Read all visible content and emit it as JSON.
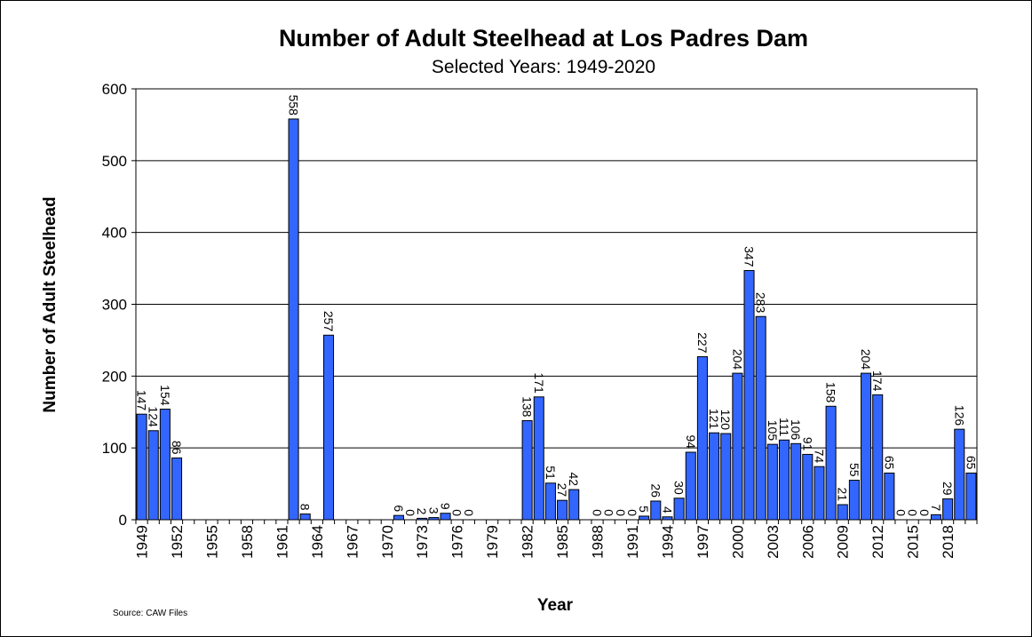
{
  "chart_data": {
    "type": "bar",
    "title": "Number of Adult Steelhead at Los Padres Dam",
    "subtitle": "Selected Years: 1949-2020",
    "x_label": "Year",
    "y_label": "Number of Adult Steelhead",
    "source": "Source:  CAW Files",
    "categories": [
      "1949",
      null,
      null,
      "1952",
      null,
      null,
      "1955",
      null,
      null,
      "1958",
      null,
      null,
      "1961",
      null,
      null,
      "1964",
      null,
      null,
      "1967",
      null,
      null,
      "1970",
      null,
      null,
      "1973",
      null,
      null,
      "1976",
      null,
      null,
      "1979",
      null,
      null,
      "1982",
      null,
      null,
      "1985",
      null,
      null,
      "1988",
      null,
      null,
      "1991",
      null,
      null,
      "1994",
      null,
      null,
      "1997",
      null,
      null,
      "2000",
      null,
      null,
      "2003",
      null,
      null,
      "2006",
      null,
      null,
      "2009",
      null,
      null,
      "2012",
      null,
      null,
      "2015",
      null,
      null,
      "2018",
      null,
      null
    ],
    "values": [
      147,
      124,
      154,
      86,
      null,
      null,
      null,
      null,
      null,
      null,
      null,
      null,
      null,
      558,
      8,
      null,
      257,
      null,
      null,
      null,
      null,
      null,
      6,
      0,
      2,
      3,
      9,
      0,
      0,
      null,
      null,
      null,
      null,
      138,
      171,
      51,
      27,
      42,
      null,
      0,
      0,
      0,
      0,
      5,
      26,
      4,
      30,
      94,
      227,
      121,
      120,
      204,
      347,
      283,
      105,
      111,
      106,
      91,
      74,
      158,
      21,
      55,
      204,
      174,
      65,
      0,
      0,
      0,
      7,
      29,
      126,
      65
    ],
    "color": "#3366ff",
    "ylim": [
      0,
      600
    ],
    "yticks": [
      0,
      100,
      200,
      300,
      400,
      500,
      600
    ],
    "grid": true
  }
}
